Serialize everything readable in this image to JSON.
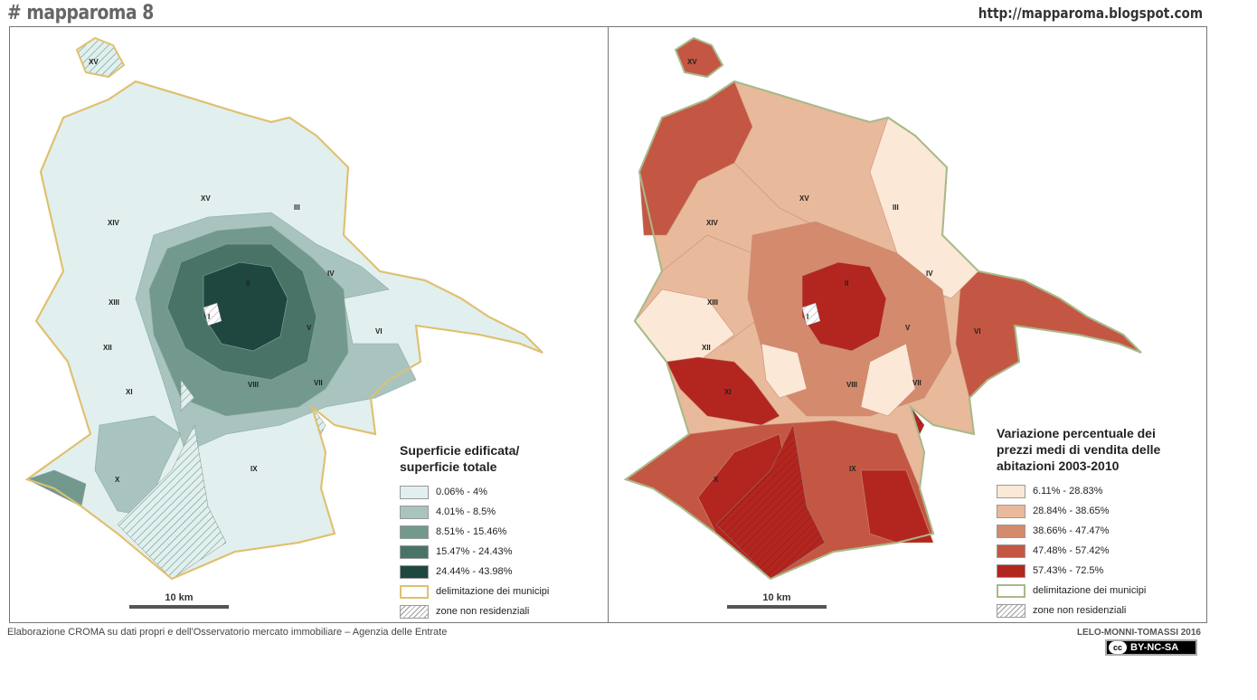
{
  "header": {
    "title": "# mapparoma 8",
    "url": "http://mapparoma.blogspot.com"
  },
  "municipi": [
    "XV",
    "XV",
    "III",
    "XIV",
    "IV",
    "II",
    "XIII",
    "I",
    "V",
    "VI",
    "XII",
    "VIII",
    "VII",
    "XI",
    "X",
    "IX"
  ],
  "left": {
    "legend_title": "Superficie edificata/ superficie totale",
    "items": [
      {
        "label": "0.06% - 4%",
        "color": "#e1f0ee"
      },
      {
        "label": "4.01% - 8.5%",
        "color": "#a9c4bf"
      },
      {
        "label": "8.51% - 15.46%",
        "color": "#73998f"
      },
      {
        "label": "15.47% - 24.43%",
        "color": "#4a7368"
      },
      {
        "label": "24.44% - 43.98%",
        "color": "#1f4740"
      }
    ],
    "border_label": "delimitazione dei municipi",
    "border_color": "#e0c070",
    "hatch_label": "zone non residenziali",
    "scale": "10 km"
  },
  "right": {
    "legend_title": "Variazione percentuale dei prezzi medi di vendita delle abitazioni 2003-2010",
    "items": [
      {
        "label": "6.11% - 28.83%",
        "color": "#fbe8d6"
      },
      {
        "label": "28.84% - 38.65%",
        "color": "#e9b99c"
      },
      {
        "label": "38.66% - 47.47%",
        "color": "#d48a6d"
      },
      {
        "label": "47.48% - 57.42%",
        "color": "#c45743"
      },
      {
        "label": "57.43% - 72.5%",
        "color": "#b3261f"
      }
    ],
    "border_label": "delimitazione dei municipi",
    "border_color": "#a9b98a",
    "hatch_label": "zone non residenziali",
    "scale": "10 km"
  },
  "footer": {
    "source": "Elaborazione CROMA su dati propri e dell'Osservatorio mercato immobiliare – Agenzia delle Entrate",
    "authors": "LELO-MONNI-TOMASSI 2016",
    "license": "BY-NC-SA",
    "cc": "cc"
  }
}
